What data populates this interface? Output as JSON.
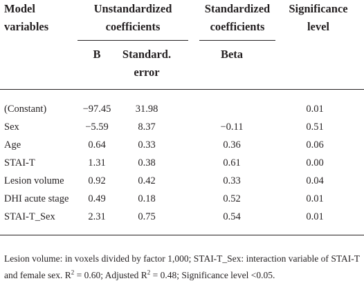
{
  "table": {
    "header": [
      [
        "Model variables",
        "Unstandardized coefficients",
        "Standardized coefficients",
        "Significance level"
      ],
      [
        "B",
        "Standard. error",
        "Beta"
      ]
    ],
    "rows": [
      [
        "(Constant)",
        "−97.45",
        "31.98",
        null,
        "0.01"
      ],
      [
        "Sex",
        "−5.59",
        "8.37",
        "−0.11",
        "0.51"
      ],
      [
        "Age",
        "0.64",
        "0.33",
        "0.36",
        "0.06"
      ],
      [
        "STAI-T",
        "1.31",
        "0.38",
        "0.61",
        "0.00"
      ],
      [
        "Lesion volume",
        "0.92",
        "0.42",
        "0.33",
        "0.04"
      ],
      [
        "DHI acute stage",
        "0.49",
        "0.18",
        "0.52",
        "0.01"
      ],
      [
        "STAI-T_Sex",
        "2.31",
        "0.75",
        "0.54",
        "0.01"
      ]
    ],
    "footnote": [
      {
        "text": "Lesion volume: in voxels divided by factor 1,000; STAI-T_Sex: interaction variable of STAI-T and female sex. R"
      },
      {
        "sup": "2"
      },
      {
        "text": " = 0.60; Adjusted R"
      },
      {
        "sup": "2"
      },
      {
        "text": " = 0.48; Significance level <0.05."
      }
    ]
  }
}
